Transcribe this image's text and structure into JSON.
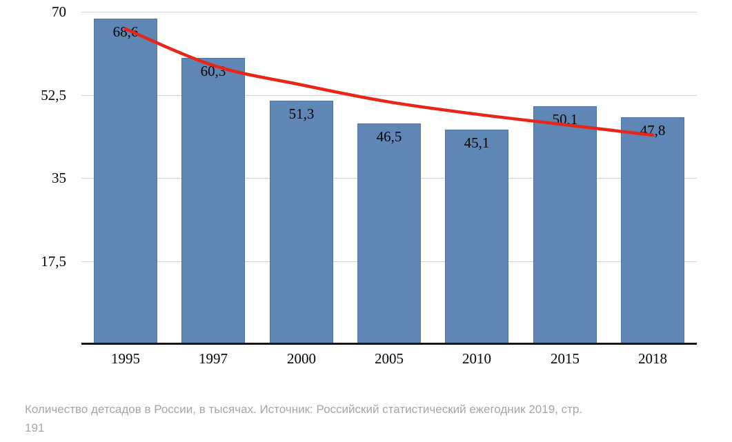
{
  "chart_data": {
    "type": "bar",
    "categories": [
      "1995",
      "1997",
      "2000",
      "2005",
      "2010",
      "2015",
      "2018"
    ],
    "values": [
      68.6,
      60.3,
      51.3,
      46.5,
      45.1,
      50.1,
      47.8
    ],
    "value_labels": [
      "68,6",
      "60,3",
      "51,3",
      "46,5",
      "45,1",
      "50,1",
      "47,8"
    ],
    "ylim": [
      0,
      70
    ],
    "yticks": [
      {
        "value": 70,
        "label": "70"
      },
      {
        "value": 52.5,
        "label": "52,5"
      },
      {
        "value": 35,
        "label": "35"
      },
      {
        "value": 17.5,
        "label": "17,5"
      }
    ],
    "grid": "horizontal",
    "legend": "none",
    "title": "",
    "xlabel": "",
    "ylabel": "",
    "bar_color": "#5f87b5",
    "bar_border_color": "#4d76a4",
    "gridline_color": "#d3d3d3",
    "axis_color": "#161616",
    "trendline": {
      "type": "fitted-curve",
      "color": "#e82517",
      "stroke_width": 4.5,
      "values": [
        66.4,
        58.7,
        54.6,
        51.0,
        48.4,
        46.2,
        44.0
      ]
    }
  },
  "caption": {
    "line1": "Количество детсадов в России, в тысячах. Источник: Российский статистический ежегодник 2019, стр.",
    "line2": "191",
    "color": "#a6a6a6"
  }
}
